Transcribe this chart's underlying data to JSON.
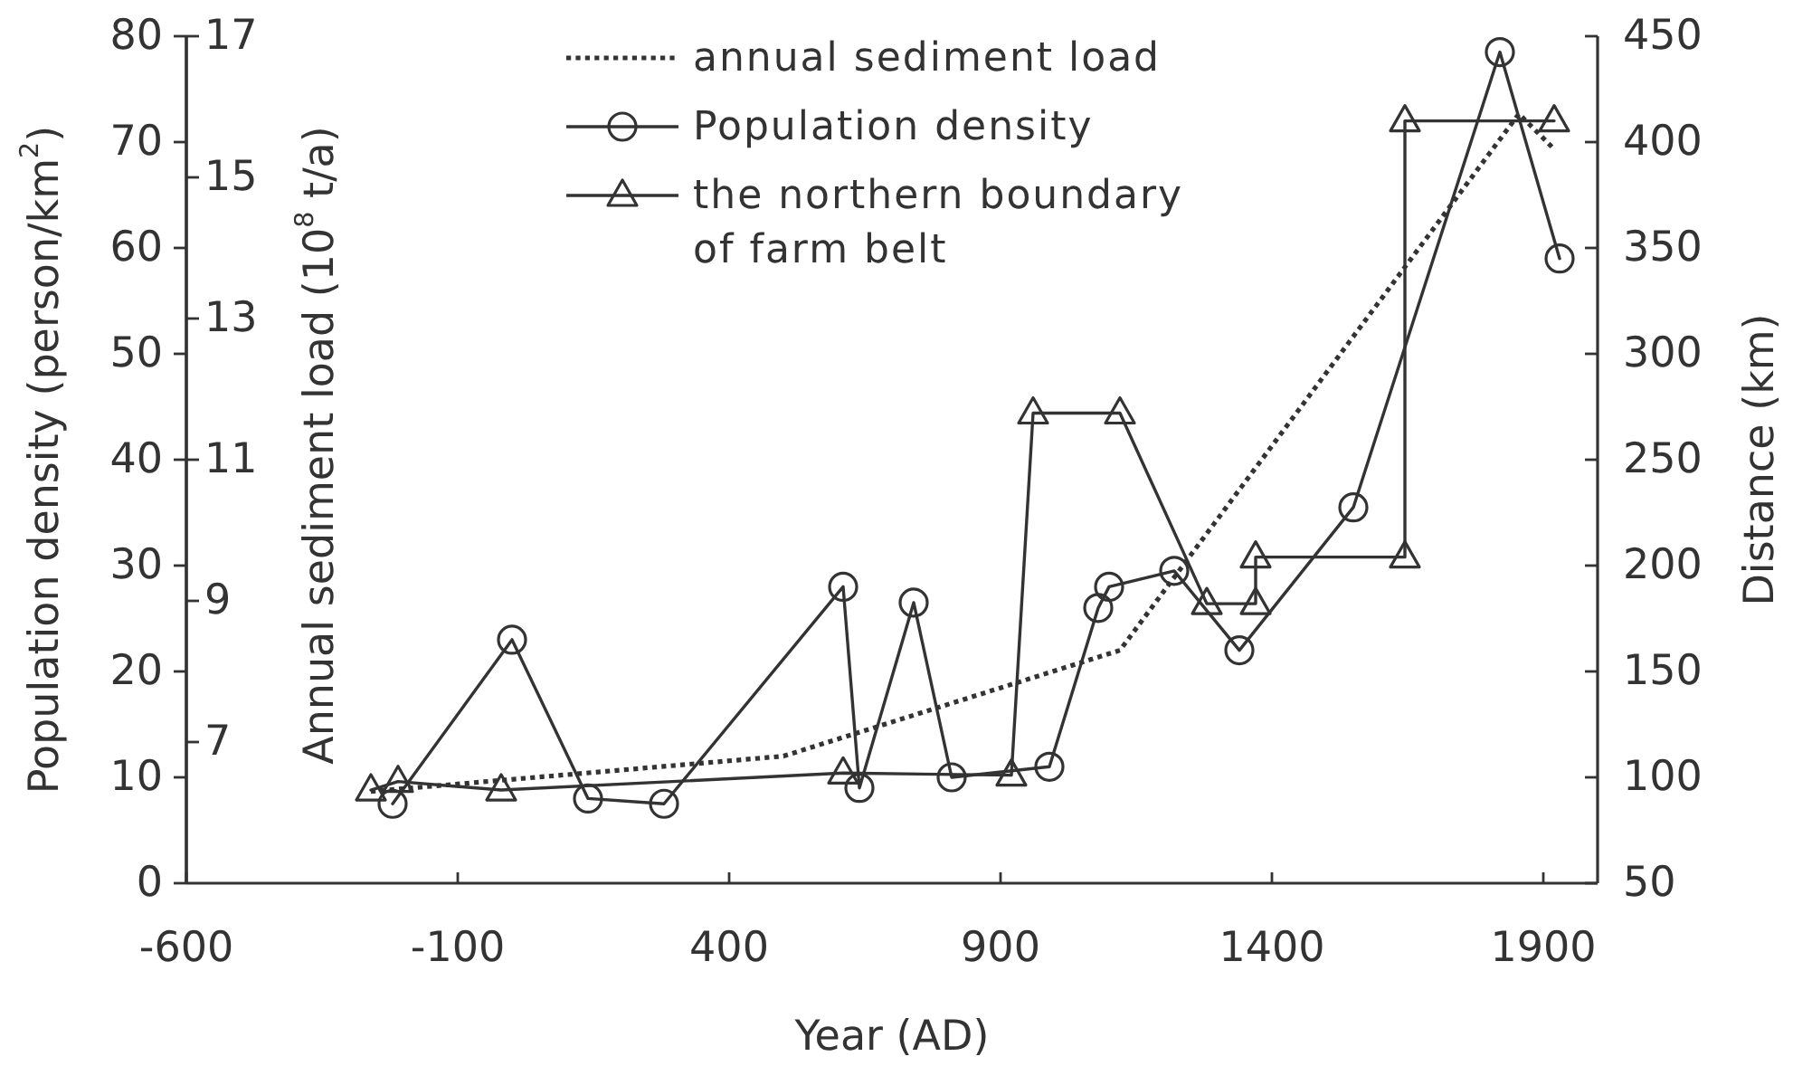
{
  "chart_data": {
    "type": "line",
    "xlabel": "Year (AD)",
    "ylabel": "Population density (person/km$^{2}$)",
    "y2label": "Distance (km)",
    "y3label": "Annual sediment load (10$^{8}$ t/a)",
    "xlim": [
      -600,
      2000
    ],
    "xticks": [
      -600,
      -100,
      400,
      900,
      1400,
      1900
    ],
    "ylim": [
      0,
      80
    ],
    "yticks": [
      0,
      10,
      20,
      30,
      40,
      50,
      60,
      70,
      80
    ],
    "y2lim": [
      50,
      450
    ],
    "y2ticks": [
      50,
      100,
      150,
      200,
      250,
      300,
      350,
      400,
      450
    ],
    "y3lim": [
      5,
      17
    ],
    "y3ticks": [
      7,
      9,
      11,
      13,
      15,
      17
    ],
    "legend": "top",
    "series": [
      {
        "name": "annual sediment load",
        "color": "#333333",
        "axis": "y3",
        "line_style": "dotted",
        "marker": "none",
        "x": [
          -260,
          500,
          1120,
          1855,
          1920
        ],
        "values": [
          6.3,
          6.8,
          8.3,
          15.9,
          15.4
        ]
      },
      {
        "name": "Population density",
        "color": "#333333",
        "line_style": "solid",
        "marker": "circle",
        "x": [
          -220,
          0,
          140,
          280,
          610,
          640,
          740,
          810,
          990,
          1080,
          1100,
          1220,
          1340,
          1550,
          1820,
          1930
        ],
        "values": [
          7.5,
          23,
          8,
          7.5,
          28,
          9,
          26.5,
          10,
          11,
          26,
          28,
          29.5,
          22,
          35.5,
          78.5,
          59
        ]
      },
      {
        "name": "the northern boundary of farm belt",
        "color": "#333333",
        "axis": "y2",
        "line_style": "solid",
        "marker": "triangle",
        "x": [
          -260,
          -210,
          -20,
          610,
          920,
          960,
          1120,
          1280,
          1370,
          1370,
          1645,
          1645,
          1920
        ],
        "values": [
          94,
          98,
          94,
          102,
          101,
          272,
          272,
          182,
          182,
          204,
          204,
          410,
          410
        ]
      }
    ]
  }
}
